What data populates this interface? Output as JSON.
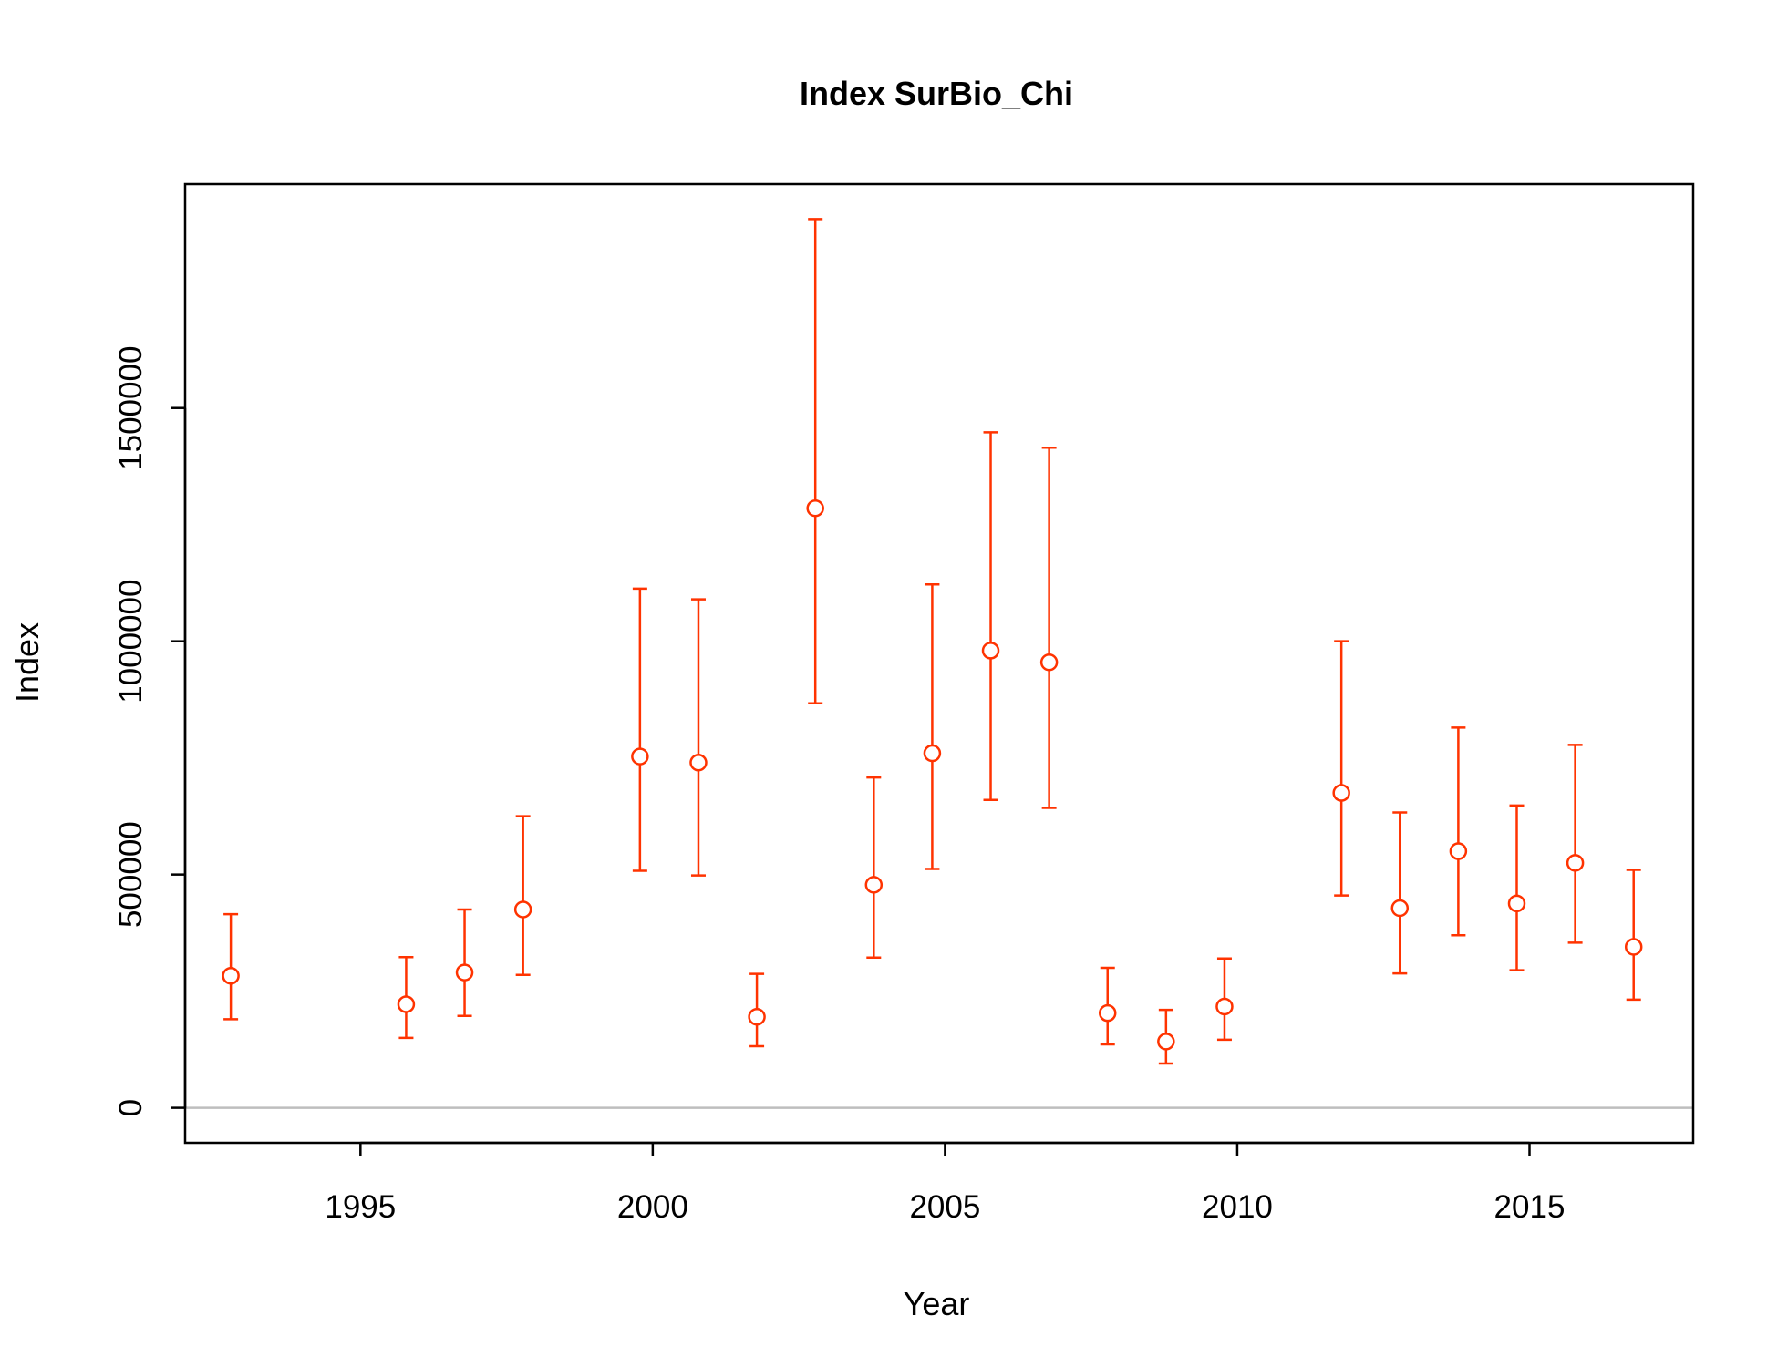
{
  "chart_data": {
    "type": "scatter",
    "title": "Index SurBio_Chi",
    "xlabel": "Year",
    "ylabel": "Index",
    "xlim": [
      1992,
      2017.8
    ],
    "ylim": [
      -75000,
      1980000
    ],
    "xticks": [
      1995,
      2000,
      2005,
      2010,
      2015
    ],
    "yticks": [
      0,
      500000,
      1000000,
      1500000
    ],
    "xtick_labels": [
      "1995",
      "2000",
      "2005",
      "2010",
      "2015"
    ],
    "ytick_labels": [
      "0",
      "500000",
      "1000000",
      "1500000"
    ],
    "grid": false,
    "reference_line": {
      "y": 0,
      "color": "#bebebe"
    },
    "marker": "open-circle",
    "color": "#ff3300",
    "points": [
      {
        "x": 1993,
        "y": 283000,
        "lower": 190000,
        "upper": 415000
      },
      {
        "x": 1996,
        "y": 222000,
        "lower": 150000,
        "upper": 323000
      },
      {
        "x": 1997,
        "y": 290000,
        "lower": 197000,
        "upper": 425000
      },
      {
        "x": 1998,
        "y": 425000,
        "lower": 285000,
        "upper": 625000
      },
      {
        "x": 2000,
        "y": 753000,
        "lower": 508000,
        "upper": 1113000
      },
      {
        "x": 2001,
        "y": 740000,
        "lower": 498000,
        "upper": 1090000
      },
      {
        "x": 2002,
        "y": 195000,
        "lower": 132000,
        "upper": 287000
      },
      {
        "x": 2003,
        "y": 1285000,
        "lower": 867000,
        "upper": 1905000
      },
      {
        "x": 2004,
        "y": 478000,
        "lower": 322000,
        "upper": 708000
      },
      {
        "x": 2005,
        "y": 760000,
        "lower": 512000,
        "upper": 1122000
      },
      {
        "x": 2006,
        "y": 980000,
        "lower": 660000,
        "upper": 1448000
      },
      {
        "x": 2007,
        "y": 955000,
        "lower": 643000,
        "upper": 1415000
      },
      {
        "x": 2008,
        "y": 203000,
        "lower": 136000,
        "upper": 300000
      },
      {
        "x": 2009,
        "y": 142000,
        "lower": 95000,
        "upper": 210000
      },
      {
        "x": 2010,
        "y": 217000,
        "lower": 146000,
        "upper": 320000
      },
      {
        "x": 2012,
        "y": 675000,
        "lower": 455000,
        "upper": 1000000
      },
      {
        "x": 2013,
        "y": 428000,
        "lower": 288000,
        "upper": 633000
      },
      {
        "x": 2014,
        "y": 550000,
        "lower": 370000,
        "upper": 815000
      },
      {
        "x": 2015,
        "y": 438000,
        "lower": 295000,
        "upper": 648000
      },
      {
        "x": 2016,
        "y": 525000,
        "lower": 354000,
        "upper": 778000
      },
      {
        "x": 2017,
        "y": 345000,
        "lower": 232000,
        "upper": 510000
      }
    ]
  }
}
